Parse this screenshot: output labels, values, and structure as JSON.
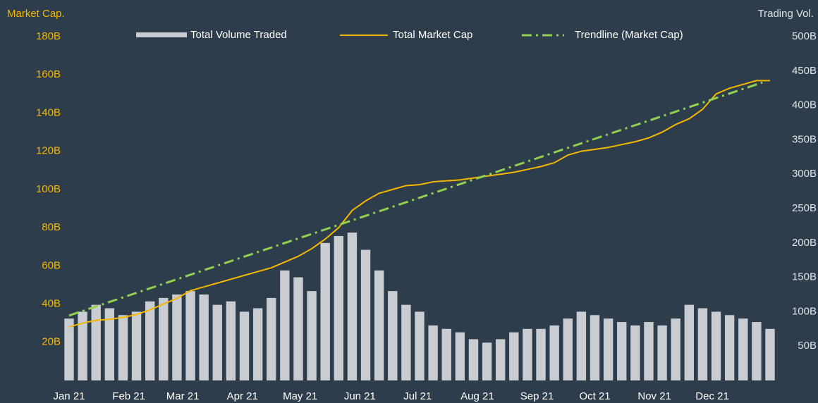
{
  "chart_data": {
    "type": "combo",
    "y_label": "Market Cap.",
    "y2_label": "Trading Vol.",
    "x": [
      0,
      7,
      14,
      21,
      28,
      35,
      42,
      49,
      56,
      63,
      70,
      77,
      84,
      91,
      98,
      105,
      112,
      119,
      126,
      133,
      140,
      147,
      154,
      161,
      168,
      175,
      182,
      189,
      196,
      203,
      210,
      217,
      224,
      231,
      238,
      245,
      252,
      259,
      266,
      273,
      280,
      287,
      294,
      301,
      308,
      315,
      322,
      329,
      336,
      343,
      350,
      357,
      364
    ],
    "xlim": [
      0,
      364
    ],
    "xticks": [
      {
        "value": 0,
        "label": "Jan 21"
      },
      {
        "value": 31,
        "label": "Feb 21"
      },
      {
        "value": 59,
        "label": "Mar 21"
      },
      {
        "value": 90,
        "label": "Apr 21"
      },
      {
        "value": 120,
        "label": "May 21"
      },
      {
        "value": 151,
        "label": "Jun 21"
      },
      {
        "value": 181,
        "label": "Jul 21"
      },
      {
        "value": 212,
        "label": "Aug 21"
      },
      {
        "value": 243,
        "label": "Sep 21"
      },
      {
        "value": 273,
        "label": "Oct 21"
      },
      {
        "value": 304,
        "label": "Nov 21"
      },
      {
        "value": 334,
        "label": "Dec 21"
      }
    ],
    "ylim": [
      0,
      180
    ],
    "yticks": [
      {
        "value": 20,
        "label": "20B"
      },
      {
        "value": 40,
        "label": "40B"
      },
      {
        "value": 60,
        "label": "60B"
      },
      {
        "value": 80,
        "label": "80B"
      },
      {
        "value": 100,
        "label": "100B"
      },
      {
        "value": 120,
        "label": "120B"
      },
      {
        "value": 140,
        "label": "140B"
      },
      {
        "value": 160,
        "label": "160B"
      },
      {
        "value": 180,
        "label": "180B"
      }
    ],
    "y2lim": [
      0,
      500
    ],
    "y2ticks": [
      {
        "value": 50,
        "label": "50B"
      },
      {
        "value": 100,
        "label": "100B"
      },
      {
        "value": 150,
        "label": "150B"
      },
      {
        "value": 200,
        "label": "200B"
      },
      {
        "value": 250,
        "label": "250B"
      },
      {
        "value": 300,
        "label": "300B"
      },
      {
        "value": 350,
        "label": "350B"
      },
      {
        "value": 400,
        "label": "400B"
      },
      {
        "value": 450,
        "label": "450B"
      },
      {
        "value": 500,
        "label": "500B"
      }
    ],
    "series": [
      {
        "name": "Total Volume Traded",
        "type": "bar",
        "axis": "y2",
        "color": "#c9cdd2",
        "values": [
          90,
          100,
          110,
          105,
          95,
          100,
          115,
          120,
          125,
          130,
          125,
          110,
          115,
          100,
          105,
          120,
          160,
          150,
          130,
          200,
          210,
          215,
          190,
          160,
          130,
          110,
          100,
          80,
          75,
          70,
          60,
          55,
          60,
          70,
          75,
          75,
          80,
          90,
          100,
          95,
          90,
          85,
          80,
          85,
          80,
          90,
          110,
          105,
          100,
          95,
          90,
          85,
          75
        ]
      },
      {
        "name": "Total Market Cap",
        "type": "line",
        "color": "#f5b800",
        "values": [
          28,
          30,
          31.5,
          32,
          33,
          34.5,
          37,
          40,
          43,
          47,
          49,
          51,
          53,
          55,
          57,
          59,
          62,
          65,
          69,
          74,
          80,
          89,
          94,
          98,
          100,
          102,
          102.5,
          104,
          104.5,
          105,
          106,
          107,
          108,
          109,
          110.5,
          112,
          114,
          118,
          120,
          121,
          122,
          123.5,
          125,
          127,
          130,
          134,
          137,
          142,
          150,
          153,
          155,
          157,
          157
        ]
      },
      {
        "name": "Trendline (Market Cap)",
        "type": "trend",
        "color": "#92d050",
        "x": [
          0,
          360
        ],
        "values": [
          34,
          156
        ]
      }
    ]
  }
}
